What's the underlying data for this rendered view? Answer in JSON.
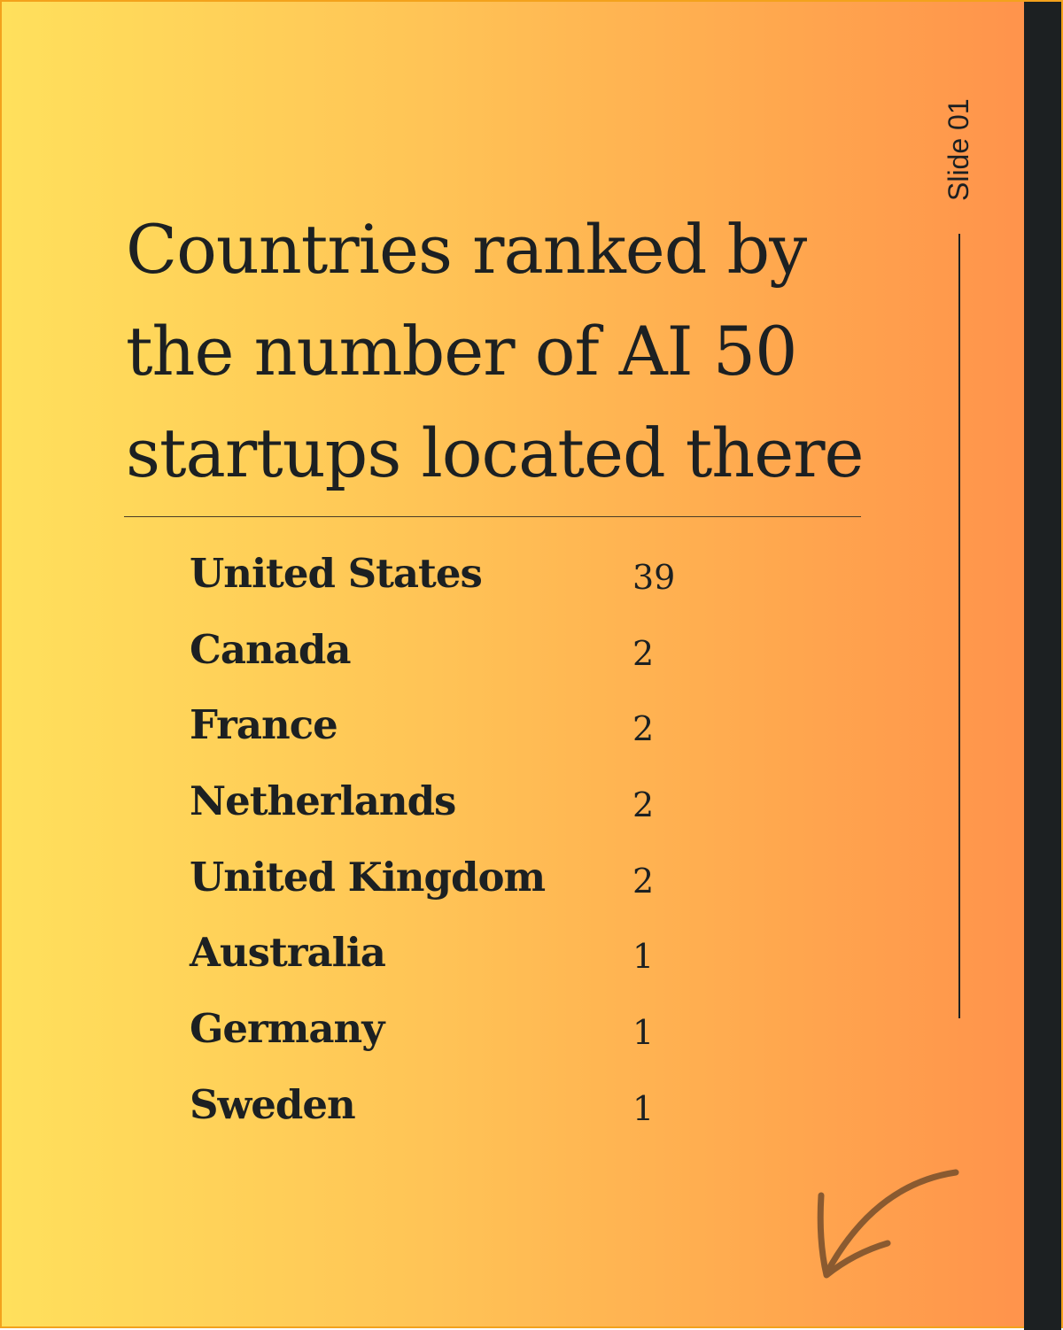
{
  "slide_label": "Slide 01",
  "title": "Countries ranked by the number of AI 50 startups located there",
  "ranking": [
    {
      "country": "United States",
      "count": "39"
    },
    {
      "country": "Canada",
      "count": "2"
    },
    {
      "country": "France",
      "count": "2"
    },
    {
      "country": "Netherlands",
      "count": "2"
    },
    {
      "country": "United Kingdom",
      "count": "2"
    },
    {
      "country": "Australia",
      "count": "1"
    },
    {
      "country": "Germany",
      "count": "1"
    },
    {
      "country": "Sweden",
      "count": "1"
    }
  ],
  "icons": {
    "next": "arrow-down-left-icon"
  },
  "colors": {
    "gradient_start": "#ffe05c",
    "gradient_end": "#ff904b",
    "text": "#1c2022",
    "band": "#1c2022",
    "arrow": "#8a5a30"
  }
}
